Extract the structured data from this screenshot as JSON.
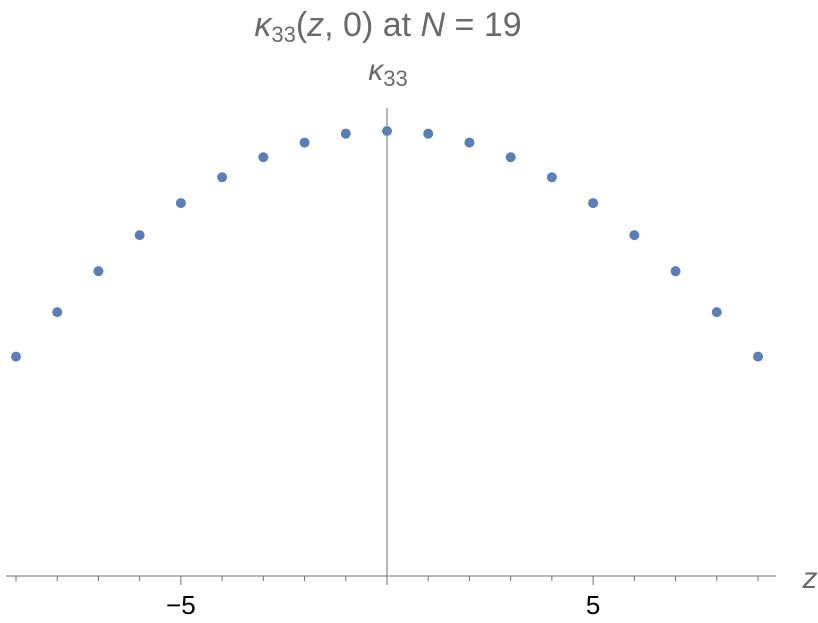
{
  "chart_data": {
    "type": "scatter",
    "title_parts": {
      "kappa": "κ",
      "sub": "33",
      "open": "(",
      "z": "z",
      "rest": ", 0) at ",
      "N": "N",
      "tail": " = 19"
    },
    "ylabel_parts": {
      "kappa": "κ",
      "sub": "33"
    },
    "xlabel": "z",
    "xlim": [
      -9.2,
      9.2
    ],
    "ylim": [
      0,
      1.0
    ],
    "x_ticks": [
      -9,
      -8,
      -7,
      -6,
      -5,
      -4,
      -3,
      -2,
      -1,
      0,
      1,
      2,
      3,
      4,
      5,
      6,
      7,
      8,
      9
    ],
    "x_tick_labels": [
      {
        "value": -5,
        "label": "−5"
      },
      {
        "value": 5,
        "label": "5"
      }
    ],
    "grid": false,
    "point_color": "#5b7fb5",
    "axis_color": "#707070",
    "x": [
      -9,
      -8,
      -7,
      -6,
      -5,
      -4,
      -3,
      -2,
      -1,
      0,
      1,
      2,
      3,
      4,
      5,
      6,
      7,
      8,
      9
    ],
    "y": [
      0.493,
      0.593,
      0.685,
      0.766,
      0.838,
      0.896,
      0.941,
      0.974,
      0.994,
      1.0,
      0.994,
      0.974,
      0.941,
      0.896,
      0.838,
      0.766,
      0.685,
      0.593,
      0.493
    ]
  }
}
